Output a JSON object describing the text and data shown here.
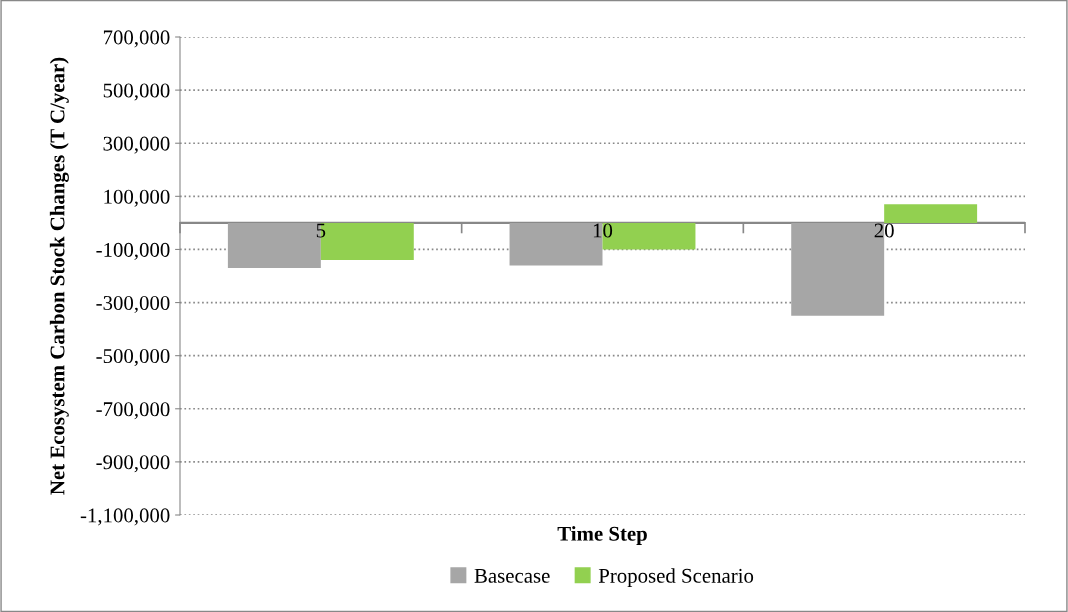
{
  "chart_data": {
    "type": "bar",
    "xlabel": "Time Step",
    "ylabel": "Net Ecosystem Carbon Stock Changes (T C/year)",
    "categories": [
      "5",
      "10",
      "20"
    ],
    "series": [
      {
        "name": "Basecase",
        "color": "#a6a6a6",
        "values": [
          -170000,
          -160000,
          -350000
        ]
      },
      {
        "name": "Proposed Scenario",
        "color": "#92d050",
        "values": [
          -140000,
          -100000,
          70000
        ]
      }
    ],
    "ylim": [
      -1100000,
      700000
    ],
    "yticks": [
      {
        "value": -1100000,
        "label": "-1,100,000"
      },
      {
        "value": -900000,
        "label": "-900,000"
      },
      {
        "value": -700000,
        "label": "-700,000"
      },
      {
        "value": -500000,
        "label": "-500,000"
      },
      {
        "value": -300000,
        "label": "-300,000"
      },
      {
        "value": -100000,
        "label": "-100,000"
      },
      {
        "value": 100000,
        "label": "100,000"
      },
      {
        "value": 300000,
        "label": "300,000"
      },
      {
        "value": 500000,
        "label": "500,000"
      },
      {
        "value": 700000,
        "label": "700,000"
      }
    ],
    "grid": "y",
    "legend": "bottom"
  }
}
